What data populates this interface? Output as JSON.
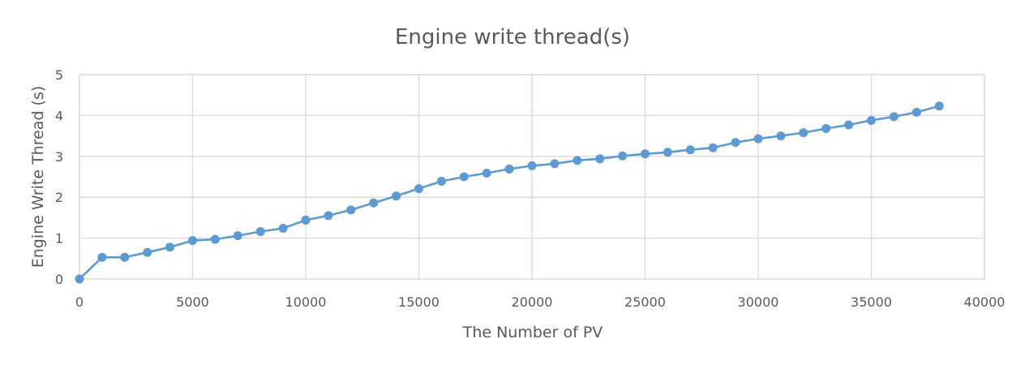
{
  "chart_data": {
    "type": "line",
    "title": "Engine write thread(s)",
    "xlabel": "The Number of PV",
    "ylabel": "Engine Write Thread (s)",
    "xlim": [
      0,
      40000
    ],
    "ylim": [
      0,
      5
    ],
    "x_ticks": [
      0,
      5000,
      10000,
      15000,
      20000,
      25000,
      30000,
      35000,
      40000
    ],
    "y_ticks": [
      0,
      1,
      2,
      3,
      4,
      5
    ],
    "grid": true,
    "legend": "none",
    "series": [
      {
        "color": "#5b9bd5",
        "x": [
          0,
          1000,
          2000,
          3000,
          4000,
          5000,
          6000,
          7000,
          8000,
          9000,
          10000,
          11000,
          12000,
          13000,
          14000,
          15000,
          16000,
          17000,
          18000,
          19000,
          20000,
          21000,
          22000,
          23000,
          24000,
          25000,
          26000,
          27000,
          28000,
          29000,
          30000,
          31000,
          32000,
          33000,
          34000,
          35000,
          36000,
          37000,
          38000
        ],
        "y": [
          0.0,
          0.53,
          0.53,
          0.65,
          0.78,
          0.94,
          0.97,
          1.06,
          1.16,
          1.24,
          1.44,
          1.55,
          1.69,
          1.86,
          2.03,
          2.21,
          2.39,
          2.5,
          2.59,
          2.69,
          2.77,
          2.82,
          2.9,
          2.94,
          3.01,
          3.06,
          3.1,
          3.16,
          3.21,
          3.34,
          3.43,
          3.5,
          3.58,
          3.68,
          3.77,
          3.88,
          3.97,
          4.08,
          4.23
        ]
      }
    ]
  }
}
